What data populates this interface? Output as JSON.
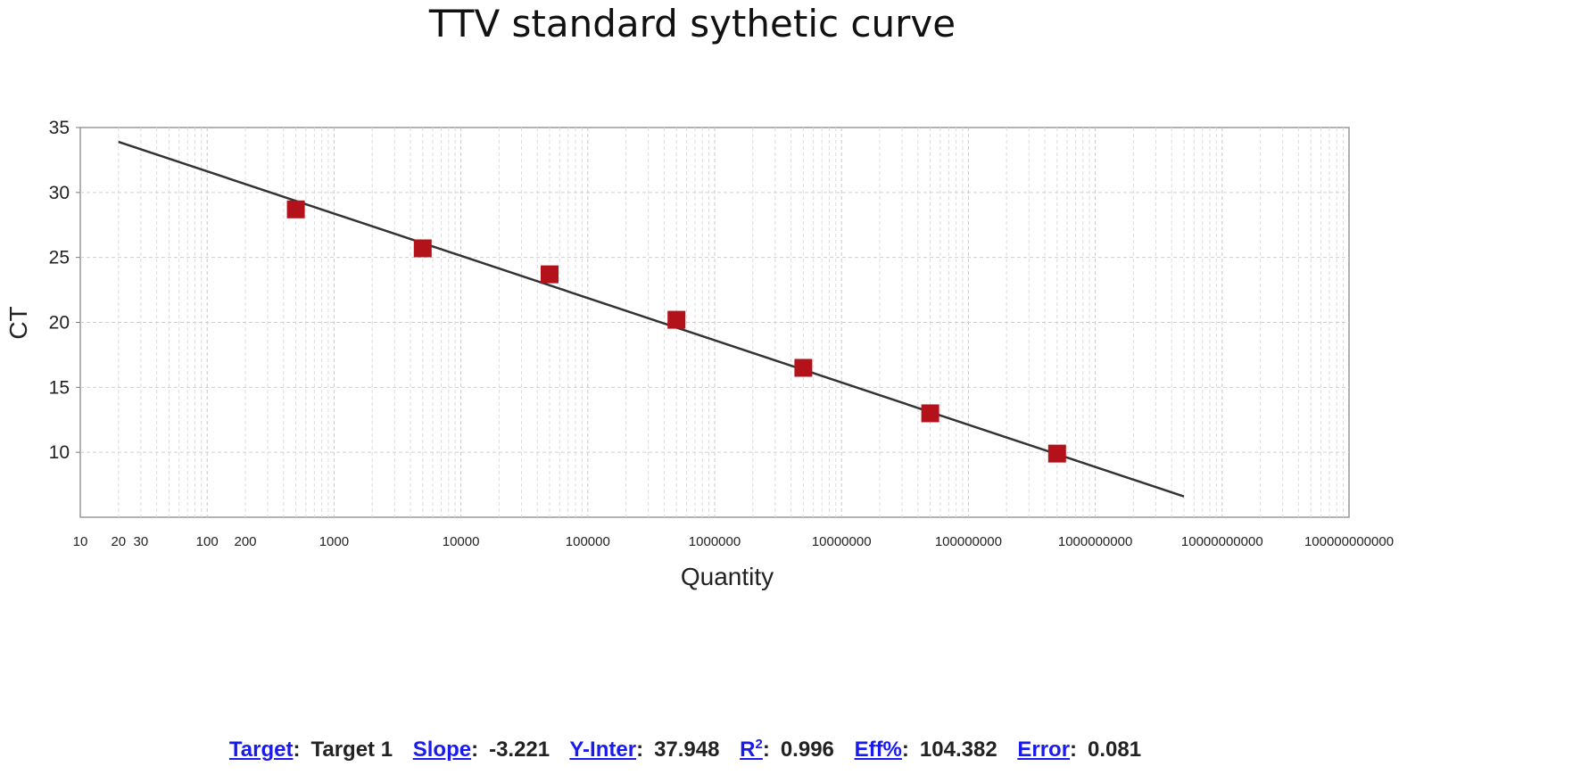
{
  "chart_data": {
    "type": "scatter",
    "title": "TTV standard sythetic curve",
    "xlabel": "Quantity",
    "ylabel": "CT",
    "x_scale": "log",
    "xlim": [
      10,
      100000000000
    ],
    "ylim": [
      5,
      35
    ],
    "grid": true,
    "x_tick_labels": [
      "10",
      "20",
      "30",
      "100",
      "200",
      "1000",
      "10000",
      "100000",
      "1000000",
      "10000000",
      "100000000",
      "1000000000",
      "10000000000",
      "100000000000"
    ],
    "y_tick_labels": [
      "10",
      "15",
      "20",
      "25",
      "30",
      "35"
    ],
    "series": [
      {
        "points": [
          {
            "x": 500,
            "y": 28.7
          },
          {
            "x": 5000,
            "y": 25.7
          },
          {
            "x": 50000,
            "y": 23.7
          },
          {
            "x": 500000,
            "y": 20.2
          },
          {
            "x": 5000000,
            "y": 16.5
          },
          {
            "x": 50000000,
            "y": 13.0
          },
          {
            "x": 500000000,
            "y": 9.9
          }
        ],
        "color": "#b3121b"
      }
    ],
    "fit_line": {
      "x_start": 20,
      "y_start": 33.9,
      "x_end": 5000000000,
      "y_end": 6.6,
      "color": "#333333"
    }
  },
  "stats": {
    "target_label": "Target",
    "target_value": "Target 1",
    "slope_label": "Slope",
    "slope_value": "-3.221",
    "yinter_label": "Y-Inter",
    "yinter_value": "37.948",
    "r2_label": "R",
    "r2_sup": "2",
    "r2_value": "0.996",
    "eff_label": "Eff%",
    "eff_value": "104.382",
    "error_label": "Error",
    "error_value": "0.081"
  }
}
